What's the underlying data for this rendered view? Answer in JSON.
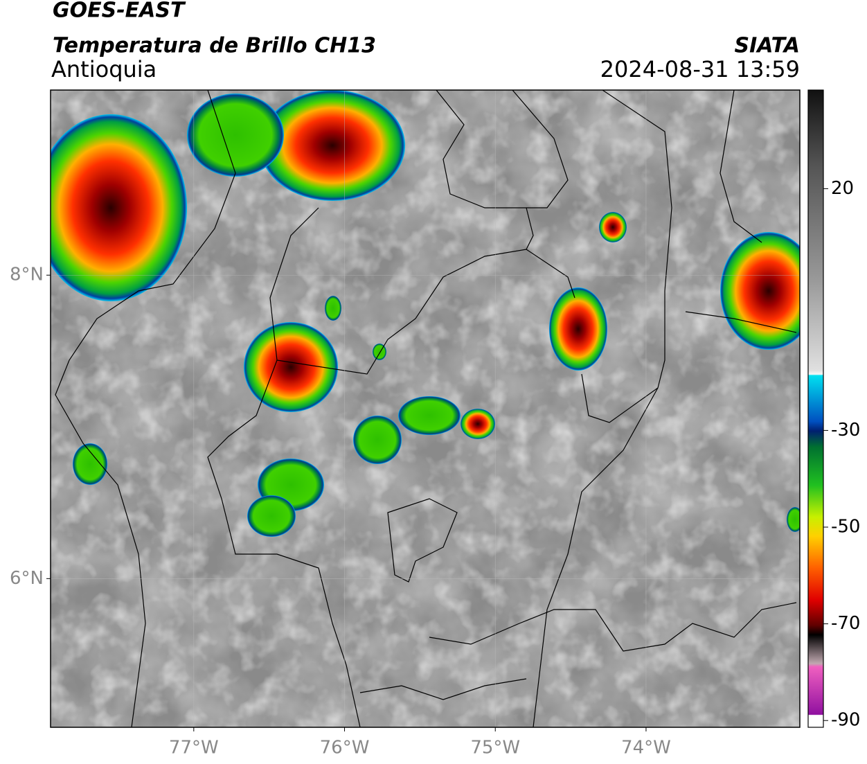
{
  "header": {
    "title": "GOES-EAST",
    "subtitle": "Temperatura de Brillo CH13",
    "region": "Antioquia",
    "source": "SIATA",
    "datetime": "2024-08-31 13:59"
  },
  "map": {
    "xlim": [
      -77.95,
      -72.98
    ],
    "ylim": [
      5.02,
      9.22
    ],
    "xticks": [
      {
        "value": -77,
        "label": "77°W"
      },
      {
        "value": -76,
        "label": "76°W"
      },
      {
        "value": -75,
        "label": "75°W"
      },
      {
        "value": -74,
        "label": "74°W"
      }
    ],
    "yticks": [
      {
        "value": 6,
        "label": "6°N"
      },
      {
        "value": 8,
        "label": "8°N"
      }
    ],
    "grid": true
  },
  "colorbar": {
    "lim": [
      -91.4,
      40.4
    ],
    "ticks": [
      20,
      -30,
      -50,
      -70,
      -90
    ]
  }
}
